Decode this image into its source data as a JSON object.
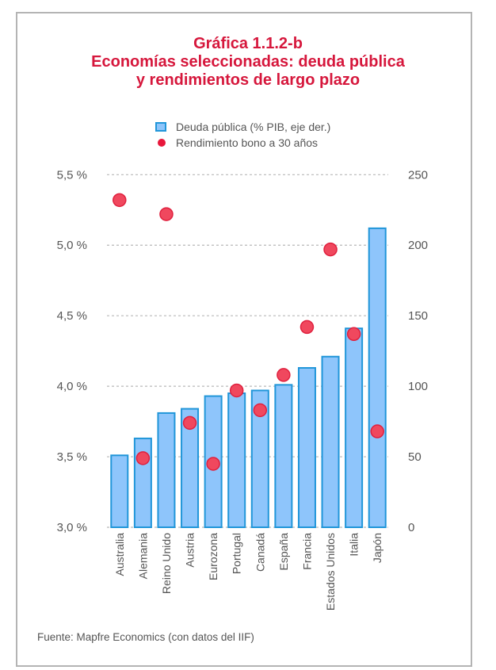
{
  "chart_data": {
    "type": "bar",
    "title_lines": [
      "Gráfica 1.1.2-b",
      "Economías seleccionadas: deuda pública",
      "y rendimientos de largo plazo"
    ],
    "categories": [
      "Australia",
      "Alemania",
      "Reino Unido",
      "Austria",
      "Eurozona",
      "Portugal",
      "Canadá",
      "España",
      "Francia",
      "Estados Unidos",
      "Italia",
      "Japón"
    ],
    "series": [
      {
        "name": "Deuda pública (% PIB, eje der.)",
        "type": "bar",
        "axis": "right",
        "color": "#8ec5fb",
        "stroke": "#2196d9",
        "values": [
          51,
          63,
          81,
          84,
          93,
          95,
          97,
          101,
          113,
          121,
          141,
          212
        ]
      },
      {
        "name": "Rendimiento bono a 30 años",
        "type": "scatter",
        "axis": "left",
        "color": "#f0485e",
        "stroke": "#e0203e",
        "values": [
          5.32,
          3.49,
          5.22,
          3.74,
          3.45,
          3.97,
          3.83,
          4.08,
          4.42,
          4.97,
          4.37,
          3.68
        ]
      }
    ],
    "left_axis": {
      "range": [
        3.0,
        5.5
      ],
      "ticks": [
        3.0,
        3.5,
        4.0,
        4.5,
        5.0,
        5.5
      ],
      "tick_labels": [
        "3,0 %",
        "3,5 %",
        "4,0 %",
        "4,5 %",
        "5,0 %",
        "5,5 %"
      ]
    },
    "right_axis": {
      "range": [
        0,
        250
      ],
      "ticks": [
        0,
        50,
        100,
        150,
        200,
        250
      ],
      "tick_labels": [
        "0",
        "50",
        "100",
        "150",
        "200",
        "250"
      ]
    },
    "grid": true,
    "legend_position": "top-center",
    "xlabel": "",
    "ylabel": ""
  },
  "title": {
    "line1": "Gráfica 1.1.2-b",
    "line2": "Economías seleccionadas: deuda pública",
    "line3": "y rendimientos de largo plazo",
    "color": "#d6173c"
  },
  "legend": {
    "bar_label": "Deuda pública (% PIB, eje der.)",
    "dot_label": "Rendimiento bono a 30 años"
  },
  "source": "Fuente: Mapfre Economics (con datos del IIF)"
}
